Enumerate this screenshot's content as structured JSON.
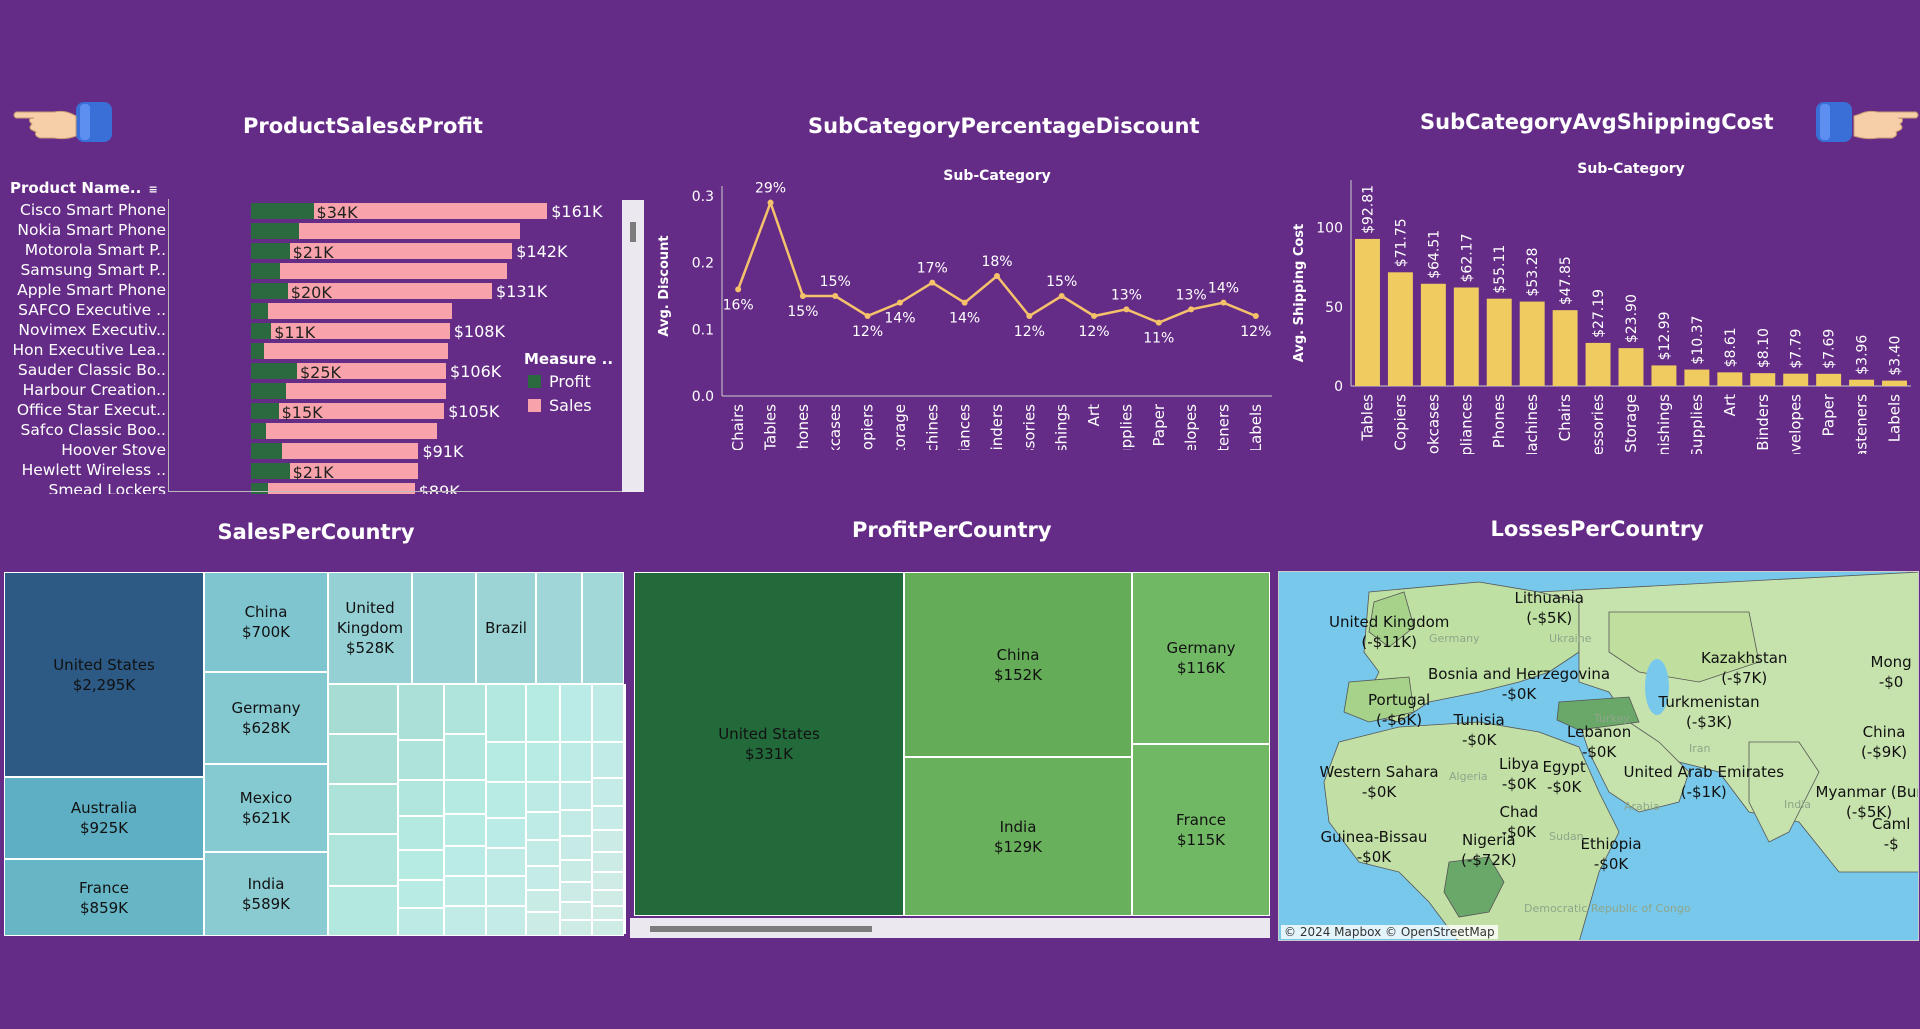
{
  "colors": {
    "background": "#652c87",
    "profit": "#2b6a3e",
    "sales": "#f8a2ab",
    "line": "#f5c26b",
    "bar": "#f0cc60",
    "sales_tm_dark": "#2c5a85",
    "profit_tm_dark": "#236a3b",
    "map_water": "#77c8ea",
    "map_land": "#bfe0a3"
  },
  "icons": {
    "left_hand": "pointing-right-hand-icon",
    "right_hand": "pointing-right-hand-icon",
    "sort": "sort-icon"
  },
  "product_panel": {
    "title": "ProductSales&Profit",
    "header": "Product Name..",
    "legend_title": "Measure ..",
    "legend_items": [
      "Profit",
      "Sales"
    ],
    "rows": [
      {
        "name": "Cisco Smart Phone",
        "sales": 161,
        "profit": 34,
        "sales_label": "$161K",
        "profit_label": "$34K"
      },
      {
        "name": "Nokia Smart Phone",
        "sales": 146,
        "profit": 26,
        "sales_label": "",
        "profit_label": ""
      },
      {
        "name": "Motorola Smart P..",
        "sales": 142,
        "profit": 21,
        "sales_label": "$142K",
        "profit_label": "$21K"
      },
      {
        "name": "Samsung Smart P..",
        "sales": 139,
        "profit": 16,
        "sales_label": "",
        "profit_label": ""
      },
      {
        "name": "Apple Smart Phone",
        "sales": 131,
        "profit": 20,
        "sales_label": "$131K",
        "profit_label": "$20K"
      },
      {
        "name": "SAFCO Executive ..",
        "sales": 109,
        "profit": 9,
        "sales_label": "",
        "profit_label": ""
      },
      {
        "name": "Novimex Executiv..",
        "sales": 108,
        "profit": 11,
        "sales_label": "$108K",
        "profit_label": "$11K"
      },
      {
        "name": "Hon Executive Lea..",
        "sales": 107,
        "profit": 7,
        "sales_label": "",
        "profit_label": ""
      },
      {
        "name": "Sauder Classic Bo..",
        "sales": 106,
        "profit": 25,
        "sales_label": "$106K",
        "profit_label": "$25K"
      },
      {
        "name": "Harbour Creation..",
        "sales": 106,
        "profit": 19,
        "sales_label": "",
        "profit_label": ""
      },
      {
        "name": "Office Star Execut..",
        "sales": 105,
        "profit": 15,
        "sales_label": "$105K",
        "profit_label": "$15K"
      },
      {
        "name": "Safco Classic Boo..",
        "sales": 101,
        "profit": 8,
        "sales_label": "",
        "profit_label": ""
      },
      {
        "name": "Hoover Stove",
        "sales": 91,
        "profit": 17,
        "sales_label": "$91K",
        "profit_label": ""
      },
      {
        "name": "Hewlett Wireless ..",
        "sales": 91,
        "profit": 21,
        "sales_label": "",
        "profit_label": "$21K"
      },
      {
        "name": "Smead Lockers",
        "sales": 89,
        "profit": 9,
        "sales_label": "$89K",
        "profit_label": ""
      }
    ]
  },
  "discount_chart": {
    "title": "SubCategoryPercentageDiscount",
    "chart_data": {
      "type": "line",
      "title": "Sub-Category",
      "ylabel": "Avg. Discount",
      "ylim": [
        0,
        0.3
      ],
      "yticks": [
        "0.0",
        "0.1",
        "0.2",
        "0.3"
      ],
      "categories": [
        "Chairs",
        "Tables",
        "Phones",
        "Bookcases",
        "Copiers",
        "Storage",
        "Machines",
        "Appliances",
        "Binders",
        "Accessories",
        "Furnishings",
        "Art",
        "Supplies",
        "Paper",
        "Envelopes",
        "Fasteners",
        "Labels"
      ],
      "values": [
        0.16,
        0.29,
        0.15,
        0.15,
        0.12,
        0.14,
        0.17,
        0.14,
        0.18,
        0.12,
        0.15,
        0.12,
        0.13,
        0.11,
        0.13,
        0.14,
        0.12
      ],
      "labels": [
        "16%",
        "29%",
        "15%",
        "15%",
        "12%",
        "14%",
        "17%",
        "14%",
        "18%",
        "12%",
        "15%",
        "12%",
        "13%",
        "11%",
        "13%",
        "14%",
        "12%"
      ]
    }
  },
  "shipping_chart": {
    "title": "SubCategoryAvgShippingCost",
    "chart_data": {
      "type": "bar",
      "title": "Sub-Category",
      "ylabel": "Avg. Shipping Cost",
      "ylim": [
        0,
        130
      ],
      "yticks": [
        "0",
        "50",
        "100"
      ],
      "categories": [
        "Tables",
        "Copiers",
        "Bookcases",
        "Appliances",
        "Phones",
        "Machines",
        "Chairs",
        "Accessories",
        "Storage",
        "Furnishings",
        "Supplies",
        "Art",
        "Binders",
        "Envelopes",
        "Paper",
        "Fasteners",
        "Labels"
      ],
      "values": [
        92.81,
        71.75,
        64.51,
        62.17,
        55.11,
        53.28,
        47.85,
        27.19,
        23.9,
        12.99,
        10.37,
        8.61,
        8.1,
        7.79,
        7.69,
        3.96,
        3.4
      ],
      "labels": [
        "$92.81",
        "$71.75",
        "$64.51",
        "$62.17",
        "$55.11",
        "$53.28",
        "$47.85",
        "$27.19",
        "$23.90",
        "$12.99",
        "$10.37",
        "$8.61",
        "$8.10",
        "$7.79",
        "$7.69",
        "$3.96",
        "$3.40"
      ]
    }
  },
  "sales_country": {
    "title": "SalesPerCountry",
    "tiles": [
      {
        "country": "United States",
        "value": "$2,295K"
      },
      {
        "country": "Australia",
        "value": "$925K"
      },
      {
        "country": "France",
        "value": "$859K"
      },
      {
        "country": "China",
        "value": "$700K"
      },
      {
        "country": "Germany",
        "value": "$628K"
      },
      {
        "country": "Mexico",
        "value": "$621K"
      },
      {
        "country": "India",
        "value": "$589K"
      },
      {
        "country": "United Kingdom",
        "value": "$528K"
      },
      {
        "country": "Brazil",
        "value": ""
      }
    ]
  },
  "profit_country": {
    "title": "ProfitPerCountry",
    "tiles": [
      {
        "country": "United States",
        "value": "$331K"
      },
      {
        "country": "China",
        "value": "$152K"
      },
      {
        "country": "Germany",
        "value": "$116K"
      },
      {
        "country": "India",
        "value": "$129K"
      },
      {
        "country": "France",
        "value": "$115K"
      }
    ]
  },
  "losses_country": {
    "title": "LossesPerCountry",
    "labels": [
      {
        "country": "Lithuania",
        "value": "(-$5K)"
      },
      {
        "country": "United Kingdom",
        "value": "(-$11K)"
      },
      {
        "country": "Kazakhstan",
        "value": "(-$7K)"
      },
      {
        "country": "Mong",
        "value": "-$0"
      },
      {
        "country": "Bosnia and Herzegovina",
        "value": "-$0K"
      },
      {
        "country": "Portugal",
        "value": "(-$6K)"
      },
      {
        "country": "Turkmenistan",
        "value": "(-$3K)"
      },
      {
        "country": "Tunisia",
        "value": "-$0K"
      },
      {
        "country": "Lebanon",
        "value": "-$0K"
      },
      {
        "country": "China",
        "value": "(-$9K)"
      },
      {
        "country": "Western Sahara",
        "value": "-$0K"
      },
      {
        "country": "Libya",
        "value": "-$0K"
      },
      {
        "country": "Egypt",
        "value": "-$0K"
      },
      {
        "country": "United Arab Emirates",
        "value": "(-$1K)"
      },
      {
        "country": "Myanmar (Bur",
        "value": "(-$5K)"
      },
      {
        "country": "Chad",
        "value": "-$0K"
      },
      {
        "country": "Caml",
        "value": "-$"
      },
      {
        "country": "Guinea-Bissau",
        "value": "-$0K"
      },
      {
        "country": "Nigeria",
        "value": "(-$72K)"
      },
      {
        "country": "Ethiopia",
        "value": "-$0K"
      }
    ],
    "faint_labels": [
      "Germany",
      "Ukraine",
      "Turkey",
      "Iran",
      "Algeria",
      "Sudan",
      "India",
      "Arabia",
      "Democratic Republic of Congo"
    ],
    "attribution": "© 2024 Mapbox © OpenStreetMap"
  }
}
